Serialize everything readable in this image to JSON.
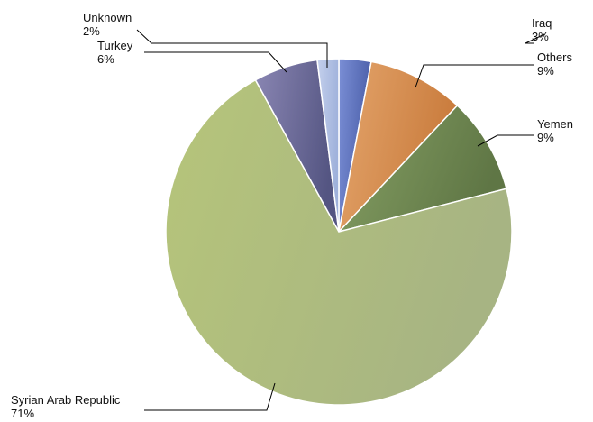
{
  "chart_data": {
    "type": "pie",
    "title": "",
    "slices": [
      {
        "label": "Iraq",
        "pct_label": "3%",
        "value": 3,
        "color": "#7b8fd6",
        "dark": "#4a5ea8"
      },
      {
        "label": "Others",
        "pct_label": "9%",
        "value": 9,
        "color": "#e4a56c",
        "dark": "#c97b3c"
      },
      {
        "label": "Yemen",
        "pct_label": "9%",
        "value": 9,
        "color": "#86a064",
        "dark": "#5f7645"
      },
      {
        "label": "Syrian Arab Republic",
        "pct_label": "71%",
        "value": 71,
        "color": "#b6c57a",
        "dark": "#a7b483"
      },
      {
        "label": "Turkey",
        "pct_label": "6%",
        "value": 6,
        "color": "#8a86b3",
        "dark": "#545582"
      },
      {
        "label": "Unknown",
        "pct_label": "2%",
        "value": 2,
        "color": "#c4d0ec",
        "dark": "#9fb1db"
      }
    ],
    "legend": "none"
  }
}
